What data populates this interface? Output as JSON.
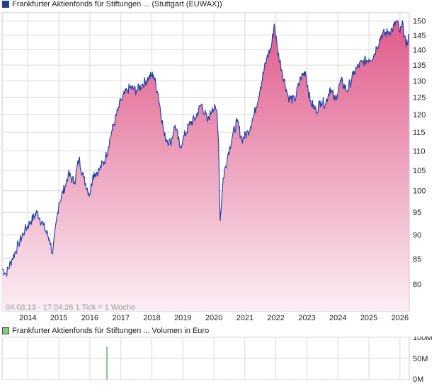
{
  "colors": {
    "price_line": "#1a3ea8",
    "price_fill_top": "#e05a8a",
    "price_fill_bottom": "#fbeef4",
    "volume_bar": "#2fa84a",
    "grid": "#d8d8d8"
  },
  "price_legend": "Frankfurter Aktienfonds für Stiftungen ... (Stuttgart (EUWAX))",
  "volume_legend": "Frankfurter Aktienfonds für Stiftungen ... Volumen in Euro",
  "watermark": "04.03.13 - 17.04.26   1 Tick = 1 Woche",
  "chart_data": [
    {
      "type": "area",
      "x_ticks": [
        "2014",
        "2015",
        "2016",
        "2017",
        "2018",
        "2019",
        "2020",
        "2021",
        "2022",
        "2023",
        "2024",
        "2025",
        "2026"
      ],
      "y_ticks": [
        "80",
        "85",
        "90",
        "95",
        "100",
        "105",
        "110",
        "115",
        "120",
        "125",
        "130",
        "135",
        "140",
        "145",
        "150"
      ],
      "ylim": [
        75,
        153
      ],
      "xlim": [
        2013.17,
        2026.3
      ],
      "scale": "log",
      "grid": true,
      "series": [
        {
          "x": [
            2013.17,
            2013.3,
            2013.5,
            2013.7,
            2013.9,
            2014.1,
            2014.3,
            2014.5,
            2014.7,
            2014.8,
            2015.0,
            2015.2,
            2015.3,
            2015.5,
            2015.65,
            2015.8,
            2016.0,
            2016.1,
            2016.3,
            2016.5,
            2016.7,
            2016.9,
            2017.0,
            2017.2,
            2017.3,
            2017.5,
            2017.7,
            2017.9,
            2018.05,
            2018.2,
            2018.4,
            2018.6,
            2018.75,
            2018.9,
            2019.0,
            2019.2,
            2019.4,
            2019.6,
            2019.8,
            2019.95,
            2020.1,
            2020.15,
            2020.2,
            2020.3,
            2020.45,
            2020.6,
            2020.75,
            2020.9,
            2021.1,
            2021.3,
            2021.5,
            2021.7,
            2021.85,
            2021.95,
            2022.05,
            2022.2,
            2022.4,
            2022.6,
            2022.8,
            2022.95,
            2023.1,
            2023.3,
            2023.45,
            2023.6,
            2023.75,
            2023.9,
            2024.1,
            2024.3,
            2024.5,
            2024.6,
            2024.8,
            2025.0,
            2025.15,
            2025.25,
            2025.4,
            2025.6,
            2025.75,
            2025.9,
            2026.0,
            2026.1,
            2026.2,
            2026.29
          ],
          "y": [
            83,
            82,
            85,
            88,
            91,
            93,
            95,
            92,
            89,
            86,
            97,
            101,
            104,
            102,
            108,
            103,
            99,
            104,
            105,
            108,
            115,
            121,
            124,
            127,
            128,
            127,
            129,
            131,
            132,
            126,
            114,
            112,
            117,
            111,
            113,
            117,
            119,
            123,
            118,
            122,
            121,
            112,
            93,
            103,
            109,
            114,
            118,
            113,
            115,
            120,
            128,
            137,
            141,
            149,
            140,
            133,
            125,
            124,
            131,
            133,
            124,
            121,
            124,
            123,
            128,
            124,
            130,
            127,
            132,
            134,
            136,
            137,
            138,
            141,
            145,
            146,
            147,
            150,
            146,
            149,
            141,
            145
          ]
        }
      ]
    },
    {
      "type": "bar",
      "y_ticks": [
        "0M",
        "50M",
        "100M"
      ],
      "ylim": [
        0,
        100
      ],
      "spike": {
        "x": 2016.55,
        "value": 78
      },
      "small_volumes": [
        0.6,
        0.3,
        0.8,
        0.4,
        0.2,
        0.5,
        0.9,
        0.3,
        0.4,
        0.7,
        0.2,
        0.5,
        0.3,
        0.6,
        0.4,
        0.8,
        0.3,
        0.5,
        0.2,
        0.4,
        0.6,
        0.3,
        0.5,
        0.7,
        0.4,
        0.3,
        0.6,
        0.2,
        0.5,
        0.8
      ]
    }
  ]
}
